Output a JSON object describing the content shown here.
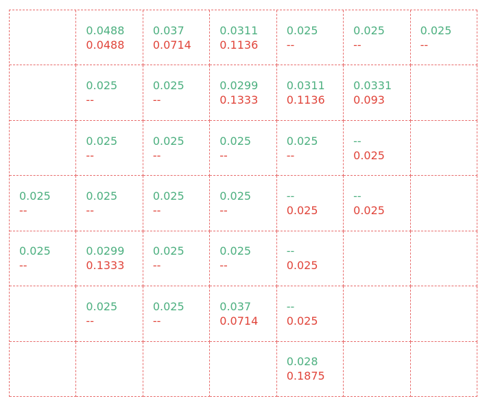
{
  "colors": {
    "top": "#4caf7f",
    "bottom": "#e0443a",
    "grid": "#e76a6a"
  },
  "rows": [
    [
      null,
      {
        "top": "0.0488",
        "bottom": "0.0488"
      },
      {
        "top": "0.037",
        "bottom": "0.0714"
      },
      {
        "top": "0.0311",
        "bottom": "0.1136"
      },
      {
        "top": "0.025",
        "bottom": "--"
      },
      {
        "top": "0.025",
        "bottom": "--"
      },
      {
        "top": "0.025",
        "bottom": "--"
      }
    ],
    [
      null,
      {
        "top": "0.025",
        "bottom": "--"
      },
      {
        "top": "0.025",
        "bottom": "--"
      },
      {
        "top": "0.0299",
        "bottom": "0.1333"
      },
      {
        "top": "0.0311",
        "bottom": "0.1136"
      },
      {
        "top": "0.0331",
        "bottom": "0.093"
      },
      null
    ],
    [
      null,
      {
        "top": "0.025",
        "bottom": "--"
      },
      {
        "top": "0.025",
        "bottom": "--"
      },
      {
        "top": "0.025",
        "bottom": "--"
      },
      {
        "top": "0.025",
        "bottom": "--"
      },
      {
        "top": "--",
        "bottom": "0.025"
      },
      null
    ],
    [
      {
        "top": "0.025",
        "bottom": "--"
      },
      {
        "top": "0.025",
        "bottom": "--"
      },
      {
        "top": "0.025",
        "bottom": "--"
      },
      {
        "top": "0.025",
        "bottom": "--"
      },
      {
        "top": "--",
        "bottom": "0.025"
      },
      {
        "top": "--",
        "bottom": "0.025"
      },
      null
    ],
    [
      {
        "top": "0.025",
        "bottom": "--"
      },
      {
        "top": "0.0299",
        "bottom": "0.1333"
      },
      {
        "top": "0.025",
        "bottom": "--"
      },
      {
        "top": "0.025",
        "bottom": "--"
      },
      {
        "top": "--",
        "bottom": "0.025"
      },
      null,
      null
    ],
    [
      null,
      {
        "top": "0.025",
        "bottom": "--"
      },
      {
        "top": "0.025",
        "bottom": "--"
      },
      {
        "top": "0.037",
        "bottom": "0.0714"
      },
      {
        "top": "--",
        "bottom": "0.025"
      },
      null,
      null
    ],
    [
      null,
      null,
      null,
      null,
      {
        "top": "0.028",
        "bottom": "0.1875"
      },
      null,
      null
    ]
  ]
}
